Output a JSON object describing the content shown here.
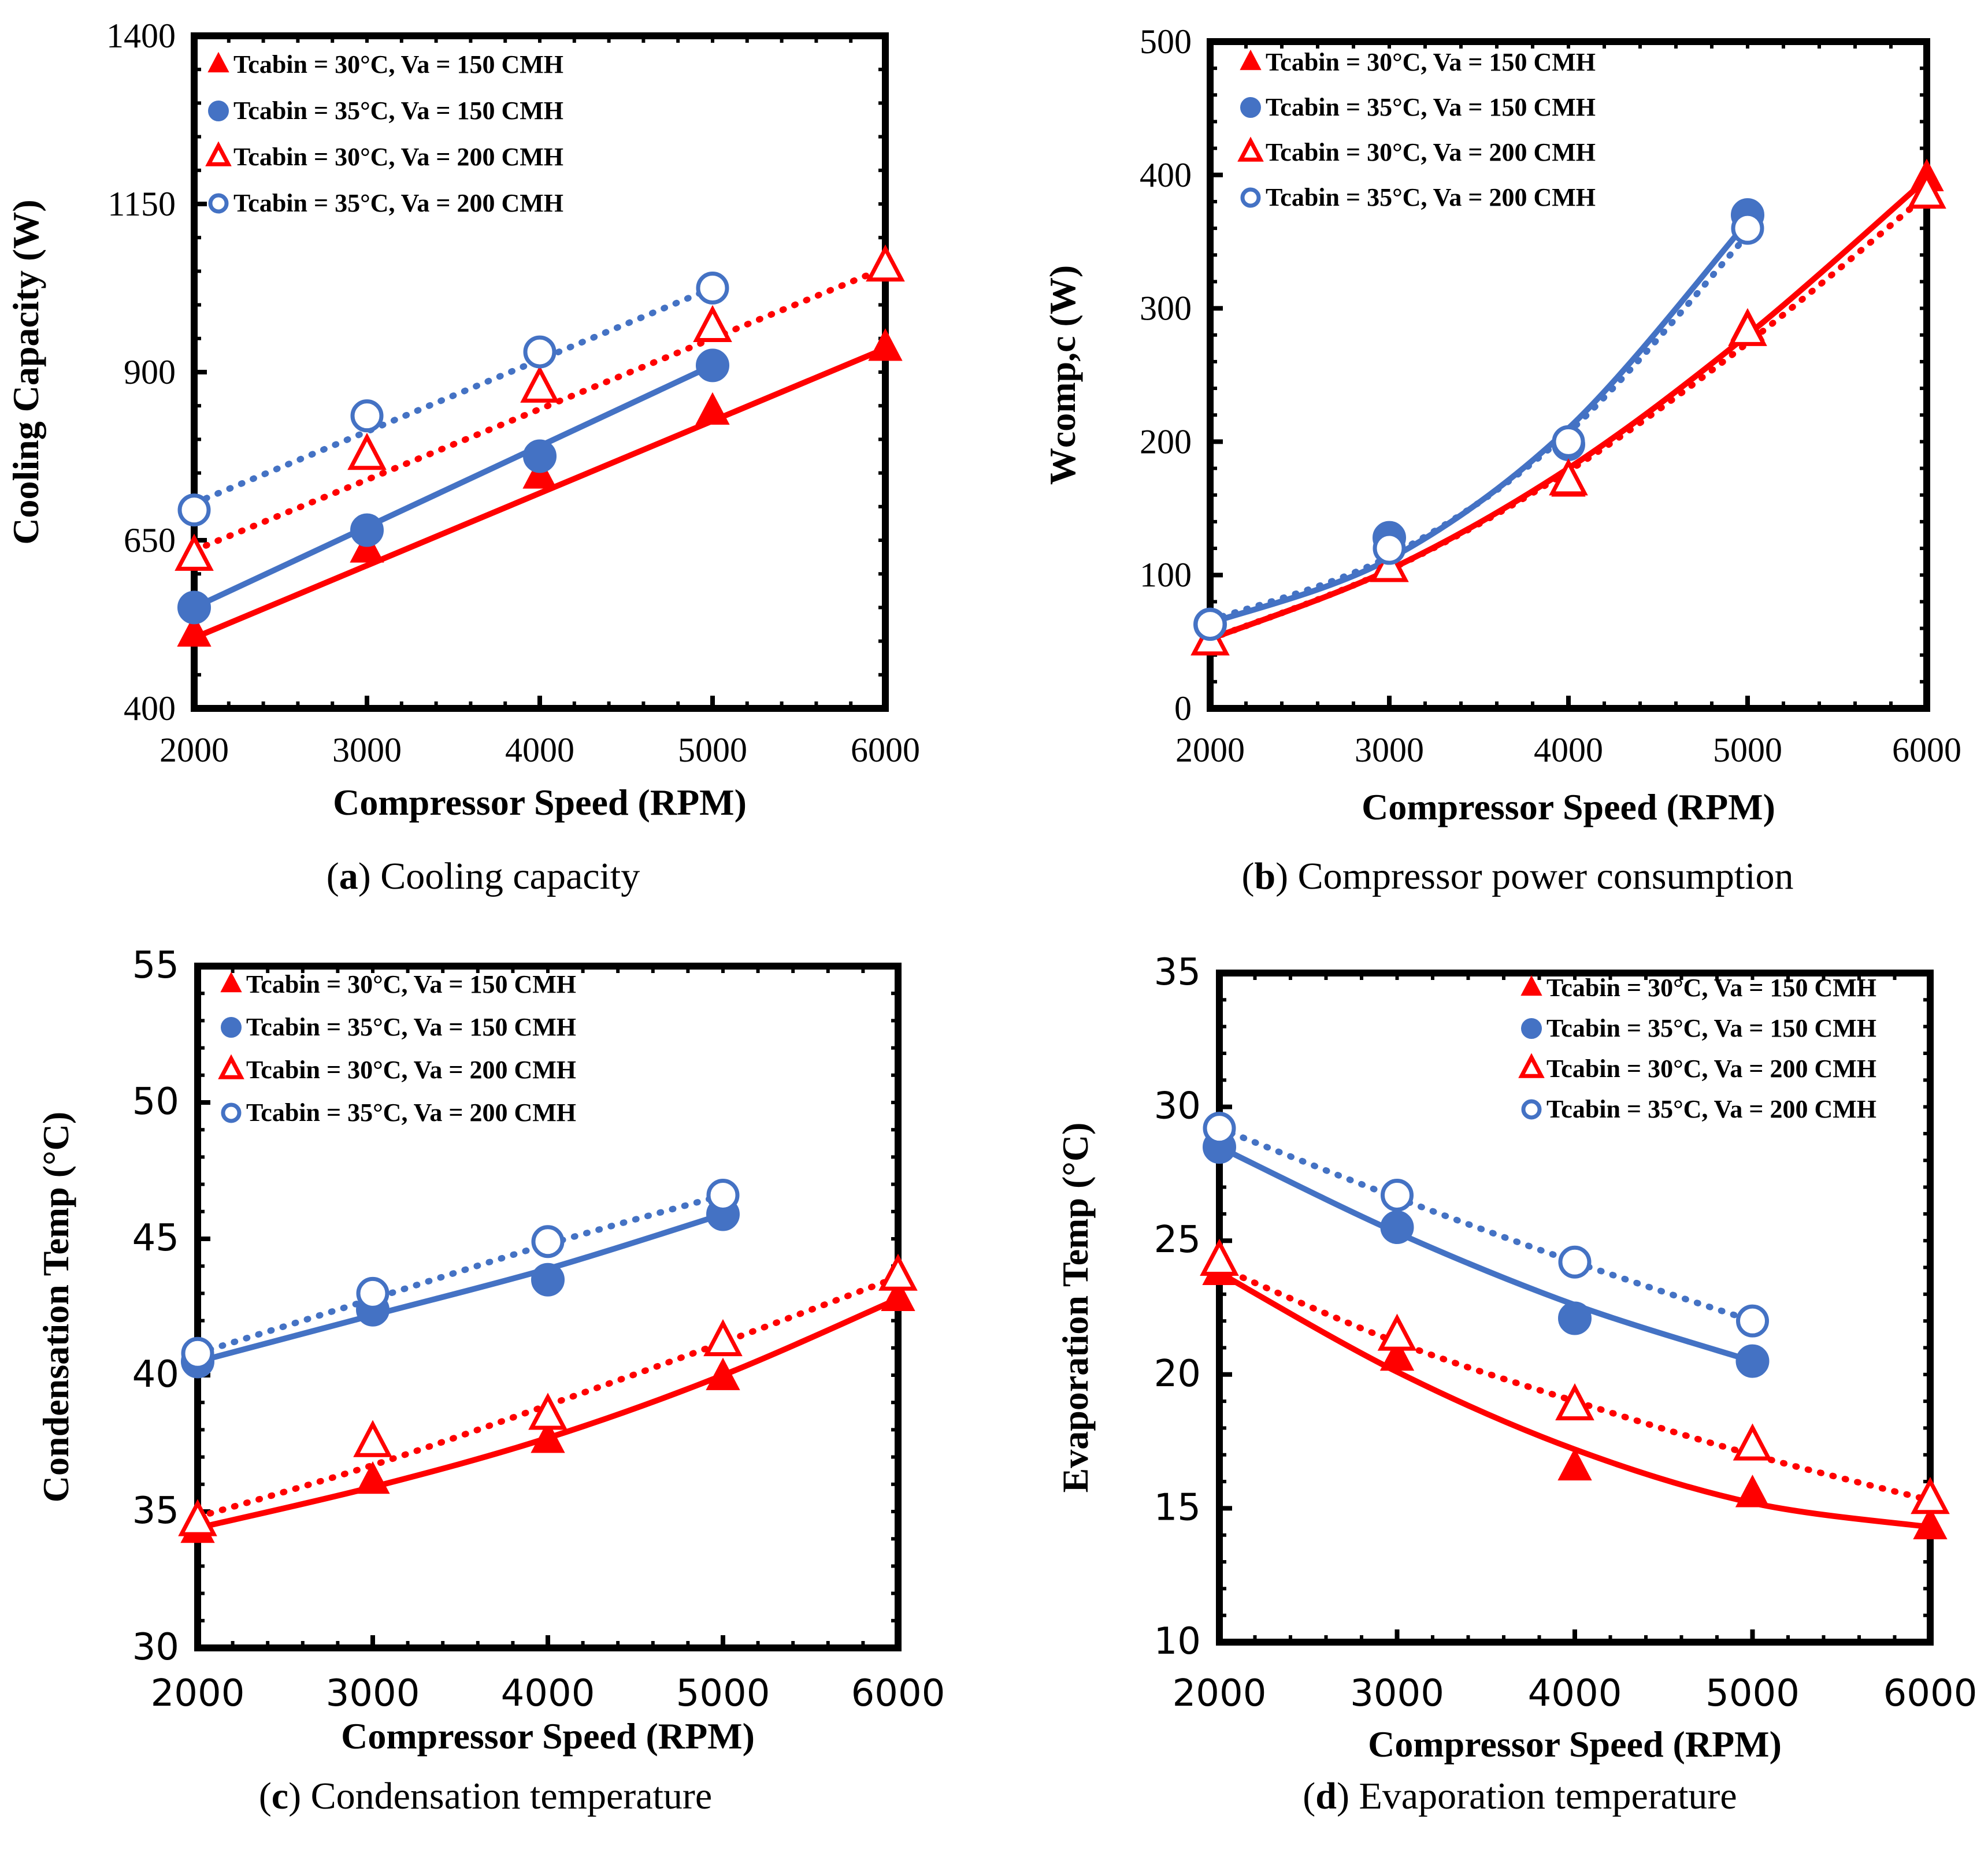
{
  "figure": {
    "captions": [
      {
        "letter": "a",
        "text": "Cooling capacity"
      },
      {
        "letter": "b",
        "text": "Compressor power consumption"
      },
      {
        "letter": "c",
        "text": "Condensation temperature"
      },
      {
        "letter": "d",
        "text": "Evaporation temperature"
      }
    ]
  },
  "colors": {
    "red": "#ff0000",
    "blue": "#4472c4",
    "frame": "#000000"
  },
  "chart_data": [
    {
      "id": "a",
      "type": "line",
      "title": "",
      "xlabel": "Compressor Speed (RPM)",
      "ylabel": "Cooling Capacity (W)",
      "xlim": [
        2000,
        6000
      ],
      "ylim": [
        400,
        1400
      ],
      "xticks": [
        2000,
        3000,
        4000,
        5000,
        6000
      ],
      "yticks": [
        400,
        650,
        900,
        1150,
        1400
      ],
      "legend_position": "top-left",
      "series": [
        {
          "name": "Tcabin = 30°C, Va = 150 CMH",
          "marker": "triangle-filled",
          "color": "#ff0000",
          "line": "solid",
          "x": [
            2000,
            3000,
            4000,
            5000,
            6000
          ],
          "values": [
            510,
            635,
            745,
            840,
            935
          ],
          "fit": [
            [
              2000,
              505
            ],
            [
              6000,
              935
            ]
          ]
        },
        {
          "name": "Tcabin = 35°C, Va = 150 CMH",
          "marker": "circle-filled",
          "color": "#4472c4",
          "line": "solid",
          "x": [
            2000,
            3000,
            4000,
            5000
          ],
          "values": [
            550,
            665,
            775,
            910
          ],
          "fit": [
            [
              2000,
              550
            ],
            [
              5000,
              910
            ]
          ]
        },
        {
          "name": "Tcabin = 30°C, Va = 200 CMH",
          "marker": "triangle-open",
          "color": "#ff0000",
          "line": "dotted",
          "x": [
            2000,
            3000,
            4000,
            5000,
            6000
          ],
          "values": [
            625,
            775,
            875,
            965,
            1055
          ],
          "fit": [
            [
              2000,
              635
            ],
            [
              6000,
              1055
            ]
          ]
        },
        {
          "name": "Tcabin = 35°C, Va = 200 CMH",
          "marker": "circle-open",
          "color": "#4472c4",
          "line": "dotted",
          "x": [
            2000,
            3000,
            4000,
            5000
          ],
          "values": [
            695,
            835,
            930,
            1025
          ],
          "fit": [
            [
              2000,
              705
            ],
            [
              5000,
              1025
            ]
          ]
        }
      ]
    },
    {
      "id": "b",
      "type": "line",
      "title": "",
      "xlabel": "Compressor Speed (RPM)",
      "ylabel": "Wcomp,c (W)",
      "xlim": [
        2000,
        6000
      ],
      "ylim": [
        0,
        500
      ],
      "xticks": [
        2000,
        3000,
        4000,
        5000,
        6000
      ],
      "yticks": [
        0,
        100,
        200,
        300,
        400,
        500
      ],
      "legend_position": "top-left",
      "series": [
        {
          "name": "Tcabin = 30°C, Va = 150 CMH",
          "marker": "triangle-filled",
          "color": "#ff0000",
          "line": "solid",
          "x": [
            2000,
            3000,
            4000,
            5000,
            6000
          ],
          "values": [
            50,
            105,
            168,
            285,
            397
          ],
          "fit": [
            [
              2000,
              52
            ],
            [
              3000,
              104
            ],
            [
              4000,
              180
            ],
            [
              5000,
              280
            ],
            [
              6000,
              397
            ]
          ]
        },
        {
          "name": "Tcabin = 35°C, Va = 150 CMH",
          "marker": "circle-filled",
          "color": "#4472c4",
          "line": "solid",
          "x": [
            2000,
            3000,
            4000,
            5000
          ],
          "values": [
            63,
            128,
            198,
            370
          ],
          "fit": [
            [
              2000,
              64
            ],
            [
              3000,
              112
            ],
            [
              4000,
              210
            ],
            [
              5000,
              365
            ]
          ]
        },
        {
          "name": "Tcabin = 30°C, Va = 200 CMH",
          "marker": "triangle-open",
          "color": "#ff0000",
          "line": "dotted",
          "x": [
            2000,
            3000,
            4000,
            5000,
            6000
          ],
          "values": [
            50,
            105,
            170,
            282,
            385
          ],
          "fit": [
            [
              2000,
              52
            ],
            [
              3000,
              104
            ],
            [
              4000,
              178
            ],
            [
              5000,
              274
            ],
            [
              6000,
              385
            ]
          ]
        },
        {
          "name": "Tcabin = 35°C, Va = 200 CMH",
          "marker": "circle-open",
          "color": "#4472c4",
          "line": "dotted",
          "x": [
            2000,
            3000,
            4000,
            5000
          ],
          "values": [
            63,
            120,
            200,
            360
          ],
          "fit": [
            [
              2000,
              66
            ],
            [
              3000,
              114
            ],
            [
              4000,
              207
            ],
            [
              5000,
              355
            ]
          ]
        }
      ]
    },
    {
      "id": "c",
      "type": "line",
      "title": "",
      "xlabel": "Compressor Speed (RPM)",
      "ylabel": "Condensation Temp (°C)",
      "xlim": [
        2000,
        6000
      ],
      "ylim": [
        30,
        55
      ],
      "xticks": [
        2000,
        3000,
        4000,
        5000,
        6000
      ],
      "yticks": [
        30,
        35,
        40,
        45,
        50,
        55
      ],
      "legend_position": "top-left",
      "series": [
        {
          "name": "Tcabin = 30°C, Va = 150 CMH",
          "marker": "triangle-filled",
          "color": "#ff0000",
          "line": "solid",
          "x": [
            2000,
            3000,
            4000,
            5000,
            6000
          ],
          "values": [
            34.3,
            36.1,
            37.6,
            39.9,
            42.8
          ],
          "fit": [
            [
              2000,
              34.4
            ],
            [
              3000,
              35.9
            ],
            [
              4000,
              37.7
            ],
            [
              5000,
              40.0
            ],
            [
              6000,
              42.8
            ]
          ]
        },
        {
          "name": "Tcabin = 35°C, Va = 150 CMH",
          "marker": "circle-filled",
          "color": "#4472c4",
          "line": "solid",
          "x": [
            2000,
            3000,
            4000,
            5000
          ],
          "values": [
            40.5,
            42.4,
            43.5,
            45.9
          ],
          "fit": [
            [
              2000,
              40.5
            ],
            [
              3000,
              42.2
            ],
            [
              4000,
              43.9
            ],
            [
              5000,
              45.9
            ]
          ]
        },
        {
          "name": "Tcabin = 30°C, Va = 200 CMH",
          "marker": "triangle-open",
          "color": "#ff0000",
          "line": "dotted",
          "x": [
            2000,
            3000,
            4000,
            5000,
            6000
          ],
          "values": [
            34.6,
            37.5,
            38.5,
            41.2,
            43.6
          ],
          "fit": [
            [
              2000,
              34.8
            ],
            [
              3000,
              36.7
            ],
            [
              4000,
              38.9
            ],
            [
              5000,
              41.2
            ],
            [
              6000,
              43.6
            ]
          ]
        },
        {
          "name": "Tcabin = 35°C, Va = 200 CMH",
          "marker": "circle-open",
          "color": "#4472c4",
          "line": "dotted",
          "x": [
            2000,
            3000,
            4000,
            5000
          ],
          "values": [
            40.8,
            43.0,
            44.9,
            46.6
          ],
          "fit": [
            [
              2000,
              40.8
            ],
            [
              3000,
              42.8
            ],
            [
              4000,
              44.8
            ],
            [
              5000,
              46.6
            ]
          ]
        }
      ]
    },
    {
      "id": "d",
      "type": "line",
      "title": "",
      "xlabel": "Compressor Speed (RPM)",
      "ylabel": "Evaporation Temp (°C)",
      "xlim": [
        2000,
        6000
      ],
      "ylim": [
        10,
        35
      ],
      "xticks": [
        2000,
        3000,
        4000,
        5000,
        6000
      ],
      "yticks": [
        10,
        15,
        20,
        25,
        30,
        35
      ],
      "legend_position": "top-right",
      "series": [
        {
          "name": "Tcabin = 30°C, Va = 150 CMH",
          "marker": "triangle-filled",
          "color": "#ff0000",
          "line": "solid",
          "x": [
            2000,
            3000,
            4000,
            5000,
            6000
          ],
          "values": [
            23.8,
            20.6,
            16.5,
            15.5,
            14.3
          ],
          "fit": [
            [
              2000,
              23.8
            ],
            [
              3000,
              20.1
            ],
            [
              4000,
              17.2
            ],
            [
              5000,
              15.2
            ],
            [
              6000,
              14.3
            ]
          ]
        },
        {
          "name": "Tcabin = 35°C, Va = 150 CMH",
          "marker": "circle-filled",
          "color": "#4472c4",
          "line": "solid",
          "x": [
            2000,
            3000,
            4000,
            5000
          ],
          "values": [
            28.5,
            25.5,
            22.1,
            20.5
          ],
          "fit": [
            [
              2000,
              28.5
            ],
            [
              3000,
              25.3
            ],
            [
              4000,
              22.6
            ],
            [
              5000,
              20.5
            ]
          ]
        },
        {
          "name": "Tcabin = 30°C, Va = 200 CMH",
          "marker": "triangle-open",
          "color": "#ff0000",
          "line": "dotted",
          "x": [
            2000,
            3000,
            4000,
            5000,
            6000
          ],
          "values": [
            24.2,
            21.4,
            18.8,
            17.3,
            15.3
          ],
          "fit": [
            [
              2000,
              24.0
            ],
            [
              3000,
              21.2
            ],
            [
              4000,
              19.0
            ],
            [
              5000,
              17.0
            ],
            [
              6000,
              15.3
            ]
          ]
        },
        {
          "name": "Tcabin = 35°C, Va = 200 CMH",
          "marker": "circle-open",
          "color": "#4472c4",
          "line": "dotted",
          "x": [
            2000,
            3000,
            4000,
            5000
          ],
          "values": [
            29.2,
            26.7,
            24.2,
            22.0
          ],
          "fit": [
            [
              2000,
              29.2
            ],
            [
              3000,
              26.6
            ],
            [
              4000,
              24.2
            ],
            [
              5000,
              22.0
            ]
          ]
        }
      ]
    }
  ]
}
